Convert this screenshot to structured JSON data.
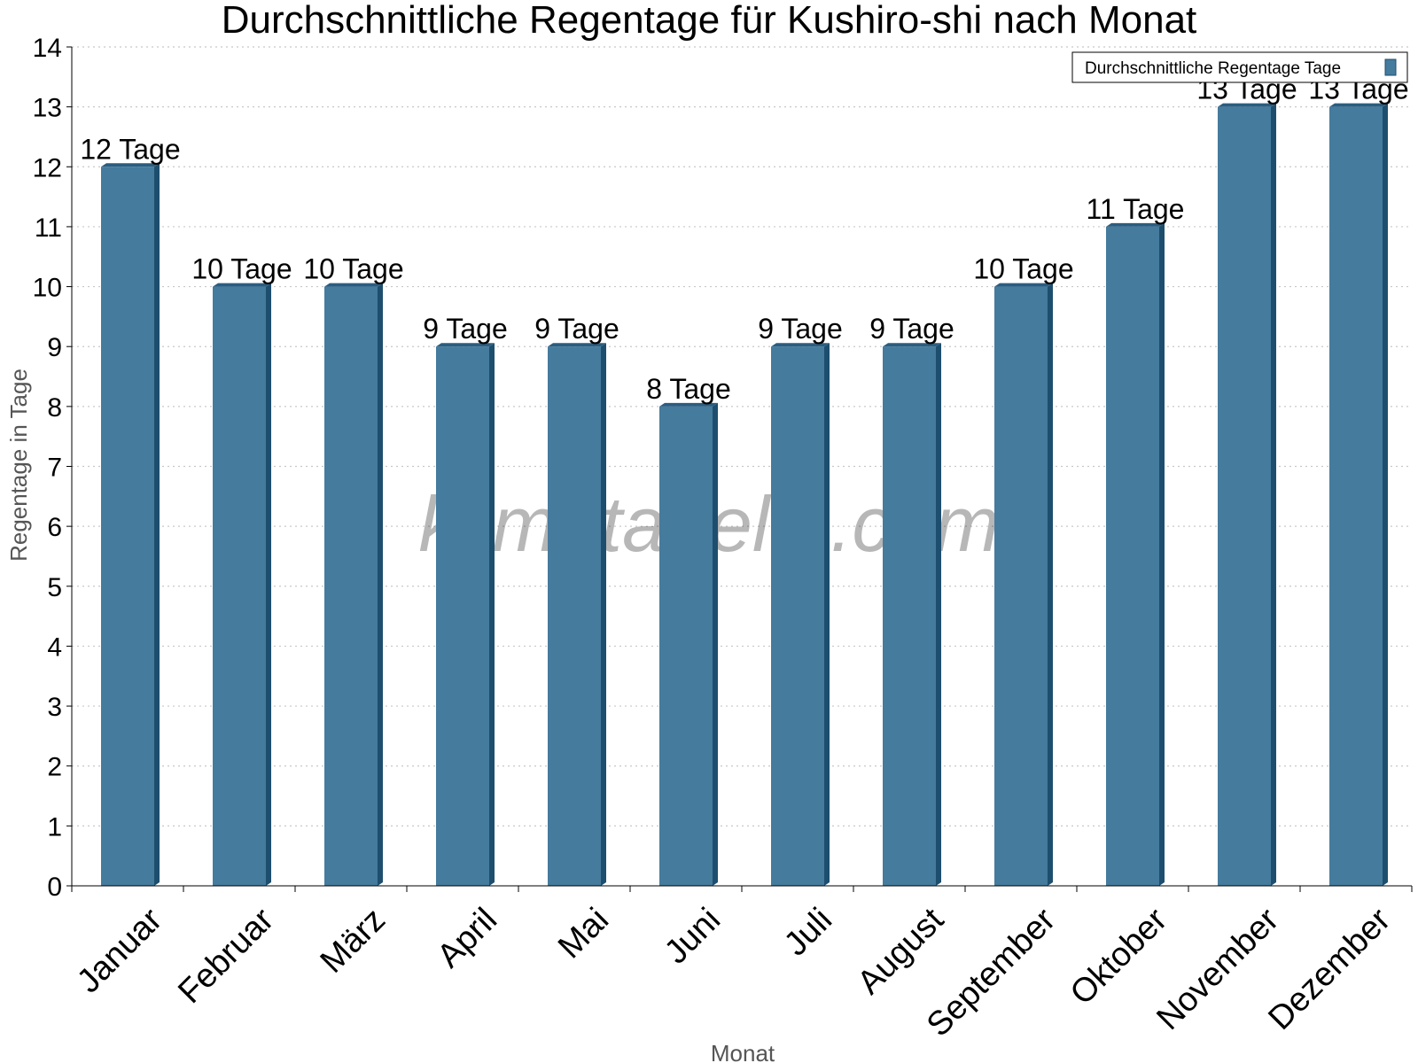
{
  "chart_data": {
    "type": "bar",
    "title": "Durchschnittliche Regentage für Kushiro-shi nach Monat",
    "xlabel": "Monat",
    "ylabel": "Regentage in Tage",
    "ylim": [
      0,
      14
    ],
    "yticks": [
      0,
      1,
      2,
      3,
      4,
      5,
      6,
      7,
      8,
      9,
      10,
      11,
      12,
      13,
      14
    ],
    "grid": true,
    "legend_position": "top-right",
    "categories": [
      "Januar",
      "Februar",
      "März",
      "April",
      "Mai",
      "Juni",
      "Juli",
      "August",
      "September",
      "Oktober",
      "November",
      "Dezember"
    ],
    "series": [
      {
        "name": "Durchschnittliche Regentage Tage",
        "values": [
          12,
          10,
          10,
          9,
          9,
          8,
          9,
          9,
          10,
          11,
          13,
          13
        ],
        "labels": [
          "12 Tage",
          "10 Tage",
          "10 Tage",
          "9 Tage",
          "9 Tage",
          "8 Tage",
          "9 Tage",
          "9 Tage",
          "10 Tage",
          "11 Tage",
          "13 Tage",
          "13 Tage"
        ]
      }
    ],
    "colors": {
      "bar": "#457b9d",
      "bar_side": "#1d4e6e",
      "bar_top": "#2b5d80",
      "grid": "#c8c8c8",
      "axis": "#000000"
    }
  },
  "watermark": "klimatabelle.com"
}
